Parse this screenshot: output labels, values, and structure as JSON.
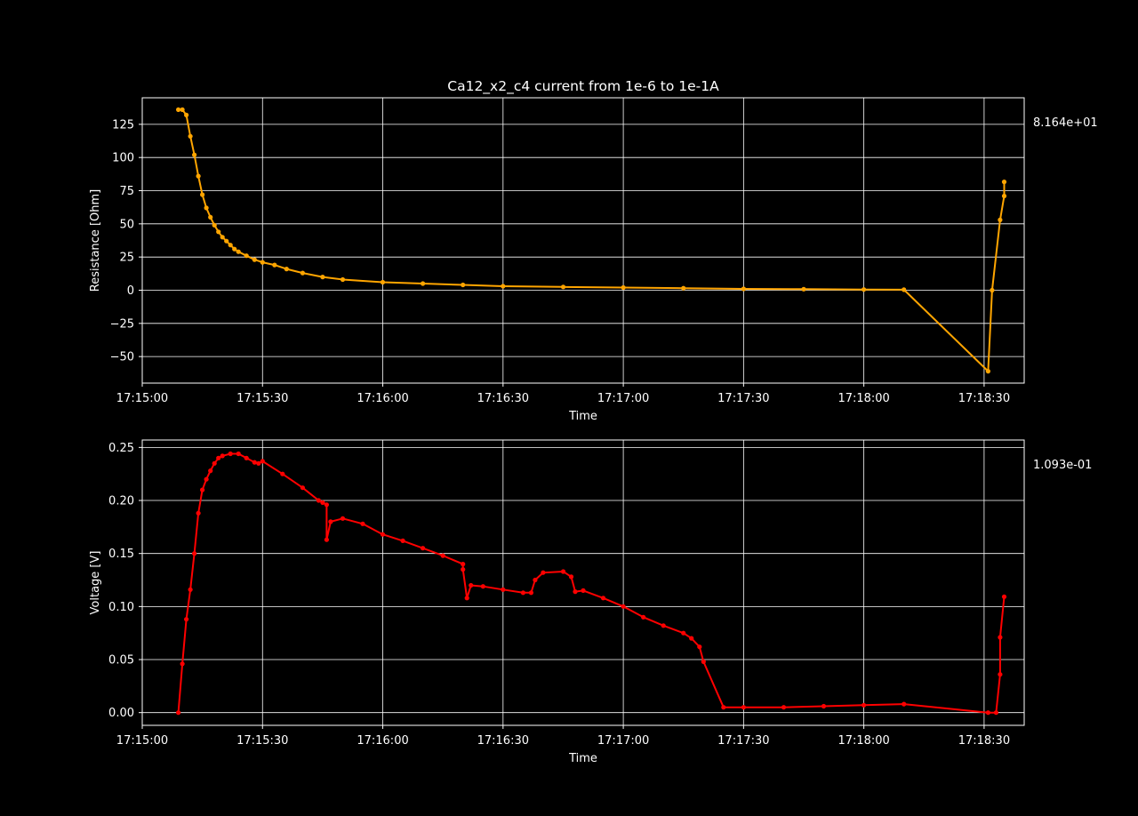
{
  "chart_data": [
    {
      "type": "line",
      "title": "Ca12_x2_c4 current from 1e-6 to 1e-1A",
      "xlabel": "Time",
      "ylabel": "Resistance [Ohm]",
      "last_value_label": "8.164e+01",
      "color": "#ffa500",
      "xlim": [
        "17:15:00",
        "17:18:40"
      ],
      "ylim": [
        -70,
        145
      ],
      "grid": true,
      "x_ticks": [
        "17:15:00",
        "17:15:30",
        "17:16:00",
        "17:16:30",
        "17:17:00",
        "17:17:30",
        "17:18:00",
        "17:18:30"
      ],
      "y_ticks": [
        -50,
        -25,
        0,
        25,
        50,
        75,
        100,
        125
      ],
      "y_tick_labels": [
        "−50",
        "−25",
        "0",
        "25",
        "50",
        "75",
        "100",
        "125"
      ],
      "series": [
        {
          "x": [
            "17:15:09",
            "17:15:10",
            "17:15:11",
            "17:15:12",
            "17:15:13",
            "17:15:14",
            "17:15:15",
            "17:15:16",
            "17:15:17",
            "17:15:18",
            "17:15:19",
            "17:15:20",
            "17:15:21",
            "17:15:22",
            "17:15:23",
            "17:15:24",
            "17:15:26",
            "17:15:28",
            "17:15:30",
            "17:15:33",
            "17:15:36",
            "17:15:40",
            "17:15:45",
            "17:15:50",
            "17:16:00",
            "17:16:10",
            "17:16:20",
            "17:16:30",
            "17:16:45",
            "17:17:00",
            "17:17:15",
            "17:17:30",
            "17:17:45",
            "17:18:00",
            "17:18:10",
            "17:18:31",
            "17:18:32",
            "17:18:34",
            "17:18:35",
            "17:18:35"
          ],
          "y": [
            136,
            136,
            132,
            116,
            102,
            86,
            72,
            62,
            55,
            49,
            44,
            40,
            37,
            34,
            31,
            29,
            26,
            23,
            21,
            19,
            16,
            13,
            10,
            8,
            6,
            5,
            4,
            3,
            2.5,
            2,
            1.5,
            1,
            0.8,
            0.5,
            0.4,
            -61,
            0,
            53,
            71,
            81.64
          ]
        }
      ]
    },
    {
      "type": "line",
      "title": "",
      "xlabel": "Time",
      "ylabel": "Voltage [V]",
      "last_value_label": "1.093e-01",
      "color": "#ff0000",
      "xlim": [
        "17:15:00",
        "17:18:40"
      ],
      "ylim": [
        -0.012,
        0.257
      ],
      "grid": true,
      "x_ticks": [
        "17:15:00",
        "17:15:30",
        "17:16:00",
        "17:16:30",
        "17:17:00",
        "17:17:30",
        "17:18:00",
        "17:18:30"
      ],
      "y_ticks": [
        0.0,
        0.05,
        0.1,
        0.15,
        0.2,
        0.25
      ],
      "y_tick_labels": [
        "0.00",
        "0.05",
        "0.10",
        "0.15",
        "0.20",
        "0.25"
      ],
      "series": [
        {
          "x": [
            "17:15:09",
            "17:15:10",
            "17:15:11",
            "17:15:12",
            "17:15:13",
            "17:15:14",
            "17:15:15",
            "17:15:16",
            "17:15:17",
            "17:15:18",
            "17:15:19",
            "17:15:20",
            "17:15:22",
            "17:15:24",
            "17:15:26",
            "17:15:28",
            "17:15:29",
            "17:15:30",
            "17:15:35",
            "17:15:40",
            "17:15:44",
            "17:15:45",
            "17:15:46",
            "17:15:46",
            "17:15:47",
            "17:15:50",
            "17:15:55",
            "17:16:00",
            "17:16:05",
            "17:16:10",
            "17:16:15",
            "17:16:20",
            "17:16:20",
            "17:16:21",
            "17:16:22",
            "17:16:25",
            "17:16:30",
            "17:16:35",
            "17:16:37",
            "17:16:38",
            "17:16:40",
            "17:16:45",
            "17:16:47",
            "17:16:48",
            "17:16:50",
            "17:16:55",
            "17:17:00",
            "17:17:05",
            "17:17:10",
            "17:17:15",
            "17:17:17",
            "17:17:19",
            "17:17:20",
            "17:17:25",
            "17:17:30",
            "17:17:40",
            "17:17:50",
            "17:18:00",
            "17:18:10",
            "17:18:31",
            "17:18:33",
            "17:18:34",
            "17:18:34",
            "17:18:35"
          ],
          "y": [
            0.0,
            0.046,
            0.088,
            0.116,
            0.15,
            0.188,
            0.21,
            0.22,
            0.228,
            0.235,
            0.24,
            0.242,
            0.244,
            0.244,
            0.24,
            0.236,
            0.235,
            0.237,
            0.225,
            0.212,
            0.2,
            0.198,
            0.196,
            0.163,
            0.18,
            0.183,
            0.178,
            0.168,
            0.162,
            0.155,
            0.148,
            0.14,
            0.135,
            0.108,
            0.12,
            0.119,
            0.116,
            0.113,
            0.113,
            0.125,
            0.132,
            0.133,
            0.128,
            0.114,
            0.115,
            0.108,
            0.1,
            0.09,
            0.082,
            0.075,
            0.07,
            0.062,
            0.048,
            0.005,
            0.005,
            0.005,
            0.006,
            0.007,
            0.008,
            0.0,
            0.0,
            0.036,
            0.071,
            0.1093
          ]
        }
      ]
    }
  ]
}
